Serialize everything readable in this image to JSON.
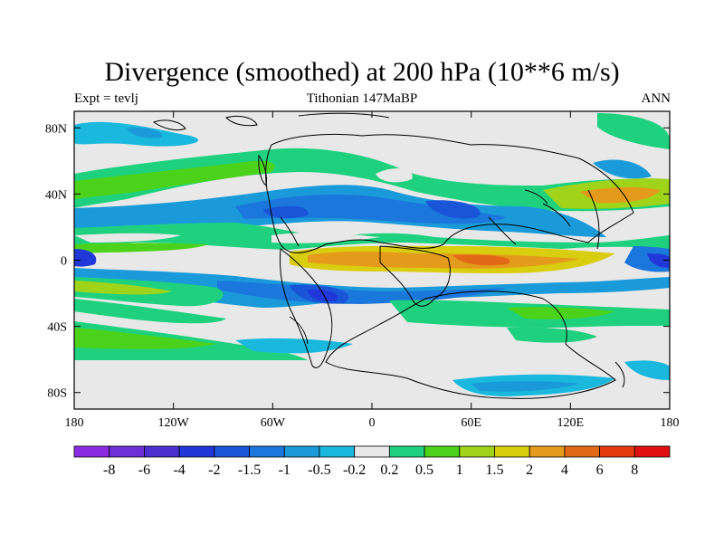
{
  "title": "Divergence (smoothed) at 200 hPa (10**6 m/s)",
  "subtitle_left": "Expt = tevlj",
  "subtitle_center": "Tithonian 147MaBP",
  "subtitle_right": "ANN",
  "lat_labels": [
    "80N",
    "40N",
    "0",
    "40S",
    "80S"
  ],
  "lat_values": [
    80,
    40,
    0,
    -40,
    -80
  ],
  "lon_labels": [
    "180",
    "120W",
    "60W",
    "0",
    "60E",
    "120E",
    "180"
  ],
  "lon_values": [
    -180,
    -120,
    -60,
    0,
    60,
    120,
    180
  ],
  "colorbar": {
    "labels": [
      "-8",
      "-6",
      "-4",
      "-2",
      "-1.5",
      "-1",
      "-0.5",
      "-0.2",
      "0.2",
      "0.5",
      "1",
      "1.5",
      "2",
      "4",
      "6",
      "8"
    ],
    "colors": [
      "#8a2be2",
      "#6e2fd6",
      "#4b2fd0",
      "#2237d8",
      "#1a55d8",
      "#1c77dc",
      "#1a9ad8",
      "#19b8dc",
      "#e8e8e8",
      "#1fd17f",
      "#4cd21a",
      "#9fd41a",
      "#d9cd10",
      "#e49a1a",
      "#e26a16",
      "#e53a10",
      "#e01010"
    ]
  },
  "palette": {
    "neutral": "#e8e8e8",
    "coast": "#000000"
  }
}
